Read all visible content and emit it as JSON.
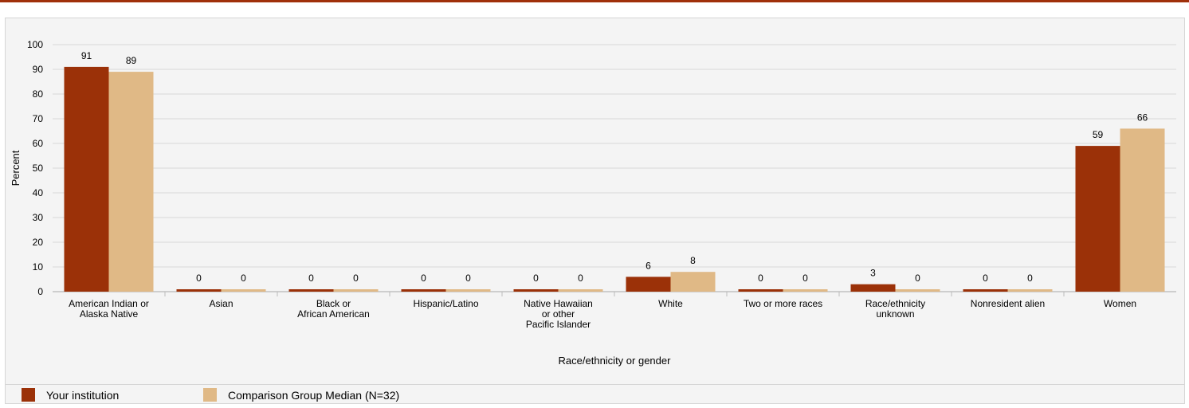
{
  "chart_data": {
    "type": "bar",
    "categories": [
      "American Indian or\nAlaska Native",
      "Asian",
      "Black or\nAfrican American",
      "Hispanic/Latino",
      "Native Hawaiian\nor other\nPacific Islander",
      "White",
      "Two or more races",
      "Race/ethnicity\nunknown",
      "Nonresident alien",
      "Women"
    ],
    "series": [
      {
        "name": "Your institution",
        "color": "#9b3108",
        "values": [
          91,
          0,
          0,
          0,
          0,
          6,
          0,
          3,
          0,
          59
        ]
      },
      {
        "name": "Comparison Group Median (N=32)",
        "color": "#e0b986",
        "values": [
          89,
          0,
          0,
          0,
          0,
          8,
          0,
          0,
          0,
          66
        ]
      }
    ],
    "xlabel": "Race/ethnicity or gender",
    "ylabel": "Percent",
    "ylim": [
      0,
      100
    ],
    "yticks": [
      0,
      10,
      20,
      30,
      40,
      50,
      60,
      70,
      80,
      90,
      100
    ],
    "grid": true,
    "legend": "bottom-left"
  }
}
